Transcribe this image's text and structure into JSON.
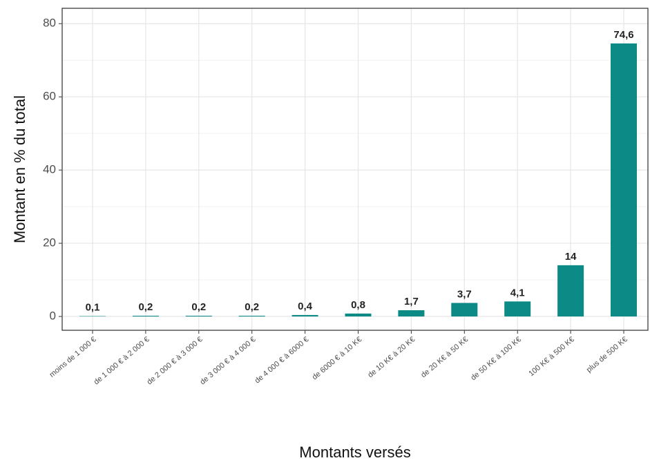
{
  "chart_data": {
    "type": "bar",
    "x_label": "Montants versés",
    "y_label": "Montant en % du total",
    "categories": [
      "moins de 1 000 €",
      "de 1 000 € à 2 000 €",
      "de 2 000 € à 3 000 €",
      "de 3 000 € à 4 000 €",
      "de 4 000 € à 6000 €",
      "de 6000 € à 10 K€",
      "de 10 K€ à 20 K€",
      "de 20 K€ à 50 K€",
      "de 50 K€ à 100 K€",
      "100 K€ à 500 K€",
      "plus de 500 K€"
    ],
    "values": [
      0.1,
      0.2,
      0.2,
      0.2,
      0.4,
      0.8,
      1.7,
      3.7,
      4.1,
      14,
      74.6
    ],
    "value_labels": [
      "0,1",
      "0,2",
      "0,2",
      "0,2",
      "0,4",
      "0,8",
      "1,7",
      "3,7",
      "4,1",
      "14",
      "74,6"
    ],
    "color": "#0b8a86",
    "ylim": [
      -3.77,
      84.2
    ],
    "yticks": [
      0,
      20,
      40,
      60,
      80
    ],
    "grid": true
  }
}
